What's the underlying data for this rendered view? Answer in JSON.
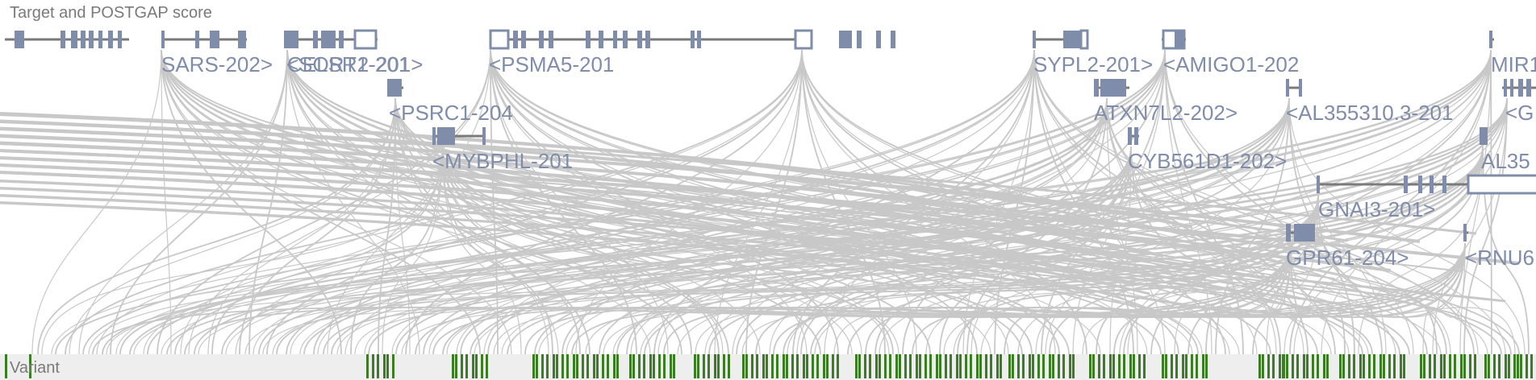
{
  "tracks": {
    "target_title": "Target and POSTGAP score",
    "variant_title": "Variant"
  },
  "colors": {
    "gene": "#7f8daa",
    "intron": "#7a7a7a",
    "link": "#c8c8c8",
    "variant": "#3a7d22",
    "variant_track_bg": "#eeeeee"
  },
  "chart_data": {
    "type": "genome-browser",
    "genes": [
      {
        "label": "SARS-202>"
      },
      {
        "label": "CELSR2-201>"
      },
      {
        "label": "<SORT1-201"
      },
      {
        "label": "<PSMA5-201"
      },
      {
        "label": "SYPL2-201>"
      },
      {
        "label": "<AMIGO1-202"
      },
      {
        "label": "MIR1"
      },
      {
        "label": "<PSRC1-204"
      },
      {
        "label": "ATXN7L2-202>"
      },
      {
        "label": "<AL355310.3-201"
      },
      {
        "label": "<G"
      },
      {
        "label": "<MYBPHL-201"
      },
      {
        "label": "CYB561D1-202>"
      },
      {
        "label": "AL35"
      },
      {
        "label": "GNAI3-201>"
      },
      {
        "label": "GPR61-204>"
      },
      {
        "label": "<RNU6"
      }
    ]
  }
}
